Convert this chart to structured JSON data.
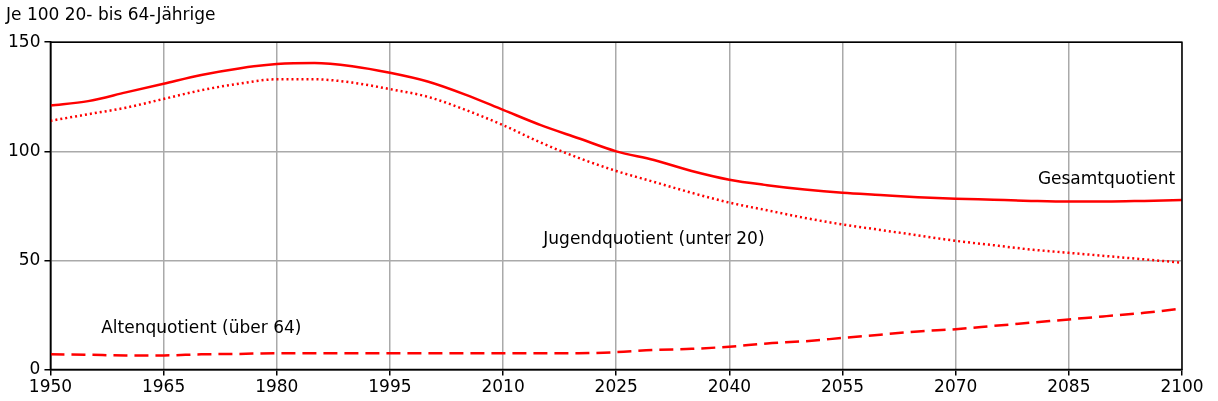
{
  "chart_data": {
    "type": "line",
    "ylabel": "Je 100 20- bis 64-Jährige",
    "x": [
      1950,
      1955,
      1960,
      1965,
      1970,
      1975,
      1980,
      1985,
      1990,
      1995,
      2000,
      2005,
      2010,
      2015,
      2020,
      2025,
      2030,
      2035,
      2040,
      2045,
      2050,
      2055,
      2060,
      2065,
      2070,
      2075,
      2080,
      2085,
      2090,
      2095,
      2100
    ],
    "series": [
      {
        "name": "Gesamtquotient",
        "color": "#ff0000",
        "line_style": "solid",
        "values": [
          121,
          123,
          127,
          131,
          135,
          138,
          140,
          140.5,
          139,
          136,
          132,
          126,
          119,
          112,
          106,
          100,
          96,
          91,
          87,
          84.5,
          82.5,
          81,
          80,
          79,
          78.3,
          77.8,
          77.3,
          77,
          77,
          77.3,
          77.7
        ]
      },
      {
        "name": "Jugendquotient (unter 20)",
        "color": "#ff0000",
        "line_style": "dotted",
        "values": [
          114,
          117,
          120,
          124,
          128,
          131,
          133,
          133,
          131.5,
          128.5,
          125,
          119,
          112,
          104,
          97,
          91,
          86,
          81,
          76.5,
          73,
          69.5,
          66.5,
          64,
          61.5,
          59,
          57,
          55,
          53.5,
          52,
          50.5,
          49
        ]
      },
      {
        "name": "Altenquotient (über 64)",
        "color": "#ff0000",
        "line_style": "dashed",
        "values": [
          7,
          6.8,
          6.5,
          6.5,
          7,
          7.2,
          7.5,
          7.5,
          7.5,
          7.5,
          7.5,
          7.5,
          7.5,
          7.5,
          7.5,
          8,
          9,
          9.5,
          10.5,
          12,
          13,
          14.5,
          16,
          17.5,
          18.5,
          20,
          21.5,
          23,
          24.5,
          26,
          28
        ]
      }
    ],
    "xlim": [
      1950,
      2100
    ],
    "xticks": [
      1950,
      1965,
      1980,
      1995,
      2010,
      2025,
      2040,
      2055,
      2070,
      2085,
      2100
    ],
    "ylim": [
      0,
      150
    ],
    "yticks": [
      0,
      50,
      100,
      150
    ],
    "grid": true,
    "legend": false,
    "marker": "none"
  }
}
